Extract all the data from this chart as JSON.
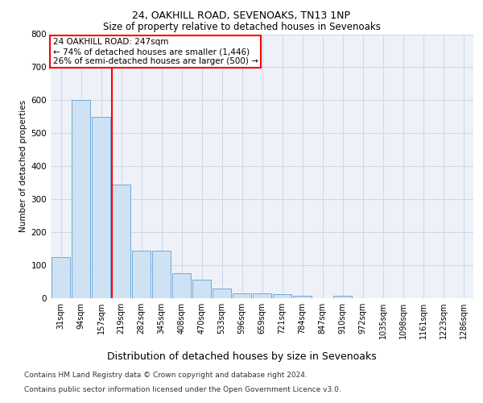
{
  "title1": "24, OAKHILL ROAD, SEVENOAKS, TN13 1NP",
  "title2": "Size of property relative to detached houses in Sevenoaks",
  "xlabel": "Distribution of detached houses by size in Sevenoaks",
  "ylabel": "Number of detached properties",
  "categories": [
    "31sqm",
    "94sqm",
    "157sqm",
    "219sqm",
    "282sqm",
    "345sqm",
    "408sqm",
    "470sqm",
    "533sqm",
    "596sqm",
    "659sqm",
    "721sqm",
    "784sqm",
    "847sqm",
    "910sqm",
    "972sqm",
    "1035sqm",
    "1098sqm",
    "1161sqm",
    "1223sqm",
    "1286sqm"
  ],
  "values": [
    125,
    600,
    550,
    345,
    145,
    145,
    75,
    55,
    30,
    15,
    15,
    12,
    7,
    0,
    8,
    0,
    0,
    0,
    0,
    0,
    0
  ],
  "bar_color": "#cfe2f3",
  "bar_edge_color": "#6fa8dc",
  "annotation_text": "24 OAKHILL ROAD: 247sqm\n← 74% of detached houses are smaller (1,446)\n26% of semi-detached houses are larger (500) →",
  "footer1": "Contains HM Land Registry data © Crown copyright and database right 2024.",
  "footer2": "Contains public sector information licensed under the Open Government Licence v3.0.",
  "ylim": [
    0,
    800
  ],
  "yticks": [
    0,
    100,
    200,
    300,
    400,
    500,
    600,
    700,
    800
  ],
  "grid_color": "#d0d8e8",
  "background_color": "#eef2f8",
  "title1_fontsize": 9,
  "title2_fontsize": 8.5,
  "ylabel_fontsize": 7.5,
  "xlabel_fontsize": 9,
  "tick_fontsize": 7,
  "footer_fontsize": 6.5,
  "annot_fontsize": 7.5,
  "red_line_index": 3
}
